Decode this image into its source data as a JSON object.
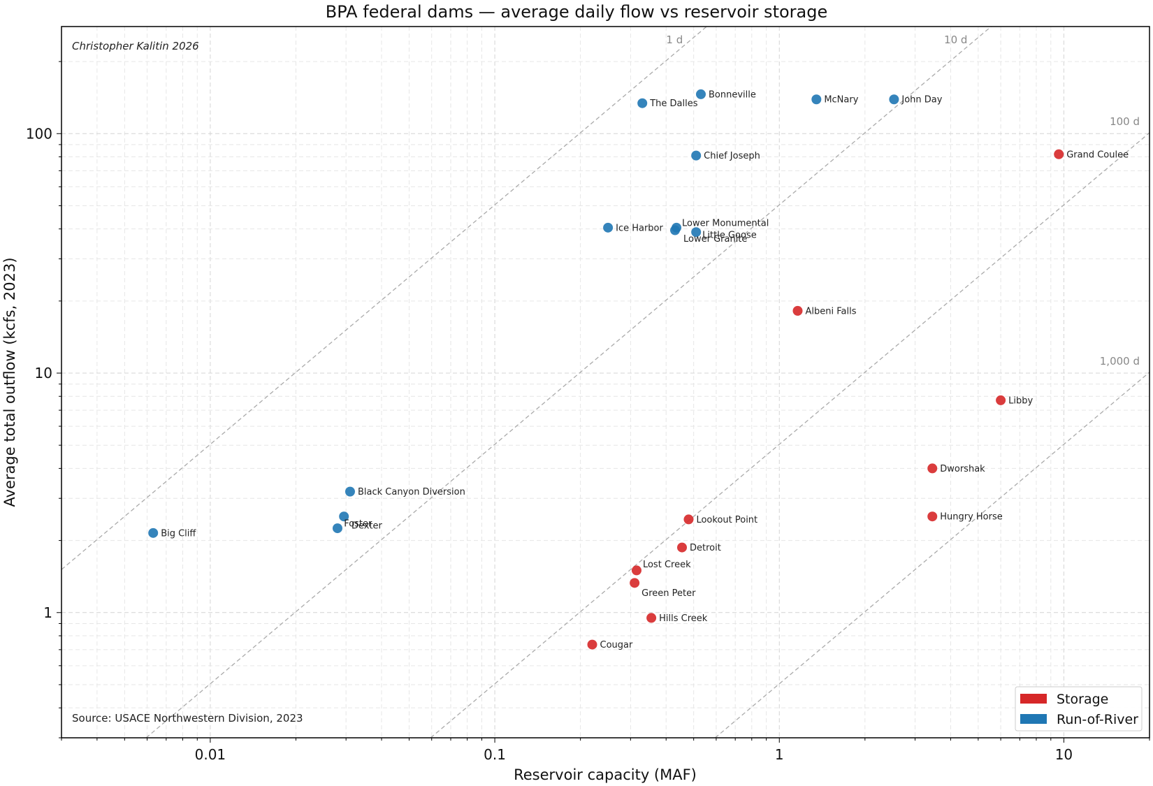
{
  "chart_data": {
    "type": "scatter",
    "title": "BPA federal dams — average daily flow vs reservoir storage",
    "xlabel": "Reservoir capacity (MAF)",
    "ylabel": "Average total outflow (kcfs, 2023)",
    "xscale": "log",
    "yscale": "log",
    "xlim": [
      0.003,
      20
    ],
    "ylim": [
      0.3,
      280
    ],
    "x_ticks": [
      {
        "value": 0.01,
        "label": "0.01"
      },
      {
        "value": 0.1,
        "label": "0.1"
      },
      {
        "value": 1,
        "label": "1"
      },
      {
        "value": 10,
        "label": "10"
      }
    ],
    "y_ticks": [
      {
        "value": 1,
        "label": "1"
      },
      {
        "value": 10,
        "label": "10"
      },
      {
        "value": 100,
        "label": "100"
      }
    ],
    "grid": true,
    "legend_position": "bottom-right",
    "credit": "Christopher Kalitin 2026",
    "source": "Source: USACE Northwestern Division, 2023",
    "reference_lines": [
      {
        "days": 1,
        "label": "1 d"
      },
      {
        "days": 10,
        "label": "10 d"
      },
      {
        "days": 100,
        "label": "100 d"
      },
      {
        "days": 1000,
        "label": "1,000 d"
      }
    ],
    "series": [
      {
        "name": "Storage",
        "color": "#d62728",
        "points": [
          {
            "label": "Grand Coulee",
            "x": 9.6,
            "y": 82
          },
          {
            "label": "Albeni Falls",
            "x": 1.16,
            "y": 18.2
          },
          {
            "label": "Libby",
            "x": 6.0,
            "y": 7.7
          },
          {
            "label": "Dworshak",
            "x": 3.45,
            "y": 4.0
          },
          {
            "label": "Hungry Horse",
            "x": 3.45,
            "y": 2.52
          },
          {
            "label": "Lookout Point",
            "x": 0.48,
            "y": 2.45
          },
          {
            "label": "Detroit",
            "x": 0.455,
            "y": 1.87
          },
          {
            "label": "Lost Creek",
            "x": 0.315,
            "y": 1.5
          },
          {
            "label": "Green Peter",
            "x": 0.31,
            "y": 1.33
          },
          {
            "label": "Hills Creek",
            "x": 0.355,
            "y": 0.95
          },
          {
            "label": "Cougar",
            "x": 0.22,
            "y": 0.735
          }
        ]
      },
      {
        "name": "Run-of-River",
        "color": "#1f77b4",
        "points": [
          {
            "label": "Bonneville",
            "x": 0.53,
            "y": 146
          },
          {
            "label": "The Dalles",
            "x": 0.33,
            "y": 134
          },
          {
            "label": "McNary",
            "x": 1.35,
            "y": 139
          },
          {
            "label": "John Day",
            "x": 2.53,
            "y": 139
          },
          {
            "label": "Chief Joseph",
            "x": 0.51,
            "y": 81
          },
          {
            "label": "Ice Harbor",
            "x": 0.25,
            "y": 40.5
          },
          {
            "label": "Lower Monumental",
            "x": 0.435,
            "y": 40.5
          },
          {
            "label": "Little Goose",
            "x": 0.51,
            "y": 38.8
          },
          {
            "label": "Lower Granite",
            "x": 0.43,
            "y": 39.5
          },
          {
            "label": "Black Canyon Diversion",
            "x": 0.031,
            "y": 3.2
          },
          {
            "label": "Foster",
            "x": 0.0295,
            "y": 2.52
          },
          {
            "label": "Dexter",
            "x": 0.028,
            "y": 2.25
          },
          {
            "label": "Big Cliff",
            "x": 0.0063,
            "y": 2.15
          }
        ]
      }
    ]
  }
}
